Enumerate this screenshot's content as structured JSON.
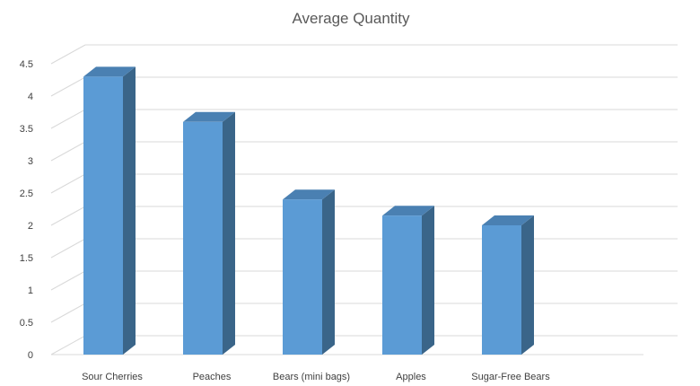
{
  "chart_data": {
    "type": "bar",
    "title": "Average Quantity",
    "categories": [
      "Sour Cherries",
      "Peaches",
      "Bears (mini bags)",
      "Apples",
      "Sugar-Free Bears"
    ],
    "values": [
      4.3,
      3.6,
      2.4,
      2.15,
      2.0
    ],
    "yticks": [
      "0",
      "0.5",
      "1",
      "1.5",
      "2",
      "2.5",
      "3",
      "3.5",
      "4",
      "4.5"
    ],
    "ylim": [
      0,
      4.5
    ],
    "xlabel": "",
    "ylabel": "",
    "grid": true,
    "legend": "none",
    "style": "3d-column",
    "colors": {
      "bar_front": "#5b9bd5",
      "bar_side": "#3a6589",
      "bar_top": "#4a80b2",
      "gridline": "#d9d9d9",
      "text": "#404040",
      "title": "#595959"
    }
  }
}
